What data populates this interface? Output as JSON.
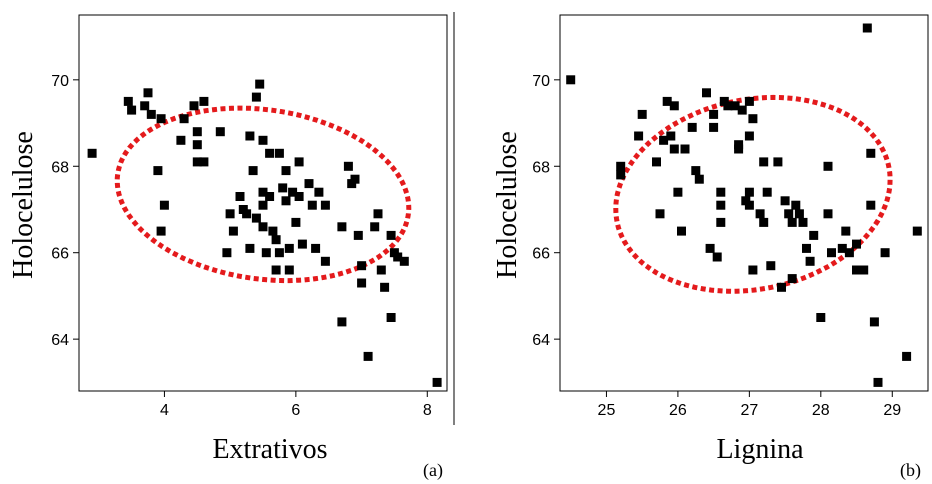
{
  "chart_data": [
    {
      "type": "scatter",
      "panel_label": "(a)",
      "xlabel": "Extrativos",
      "ylabel": "Holocelulose",
      "xlim": [
        2.7,
        8.3
      ],
      "ylim": [
        62.8,
        71.5
      ],
      "xticks": [
        4,
        6,
        8
      ],
      "yticks": [
        64,
        66,
        68,
        70
      ],
      "marker_color": "#000000",
      "ellipse_color": "#e41a1c",
      "ellipse": {
        "cx": 5.5,
        "cy": 67.35,
        "rx": 2.3,
        "ry": 1.9,
        "angle_deg": -28
      },
      "points": [
        [
          2.9,
          68.3
        ],
        [
          3.45,
          69.5
        ],
        [
          3.5,
          69.3
        ],
        [
          3.7,
          69.4
        ],
        [
          3.75,
          69.7
        ],
        [
          3.8,
          69.2
        ],
        [
          3.9,
          67.9
        ],
        [
          3.95,
          69.1
        ],
        [
          4.0,
          67.1
        ],
        [
          3.95,
          66.5
        ],
        [
          4.25,
          68.6
        ],
        [
          4.3,
          69.1
        ],
        [
          4.45,
          69.4
        ],
        [
          4.5,
          68.8
        ],
        [
          4.6,
          69.5
        ],
        [
          4.5,
          68.5
        ],
        [
          4.5,
          68.1
        ],
        [
          4.6,
          68.1
        ],
        [
          4.85,
          68.8
        ],
        [
          5.0,
          66.9
        ],
        [
          4.95,
          66.0
        ],
        [
          5.05,
          66.5
        ],
        [
          5.15,
          67.3
        ],
        [
          5.2,
          67.0
        ],
        [
          5.25,
          66.9
        ],
        [
          5.3,
          66.1
        ],
        [
          5.3,
          68.7
        ],
        [
          5.35,
          67.9
        ],
        [
          5.4,
          66.8
        ],
        [
          5.4,
          69.6
        ],
        [
          5.45,
          69.9
        ],
        [
          5.5,
          68.6
        ],
        [
          5.5,
          67.4
        ],
        [
          5.5,
          67.1
        ],
        [
          5.5,
          66.6
        ],
        [
          5.55,
          66.0
        ],
        [
          5.6,
          68.3
        ],
        [
          5.6,
          67.3
        ],
        [
          5.65,
          66.5
        ],
        [
          5.7,
          66.3
        ],
        [
          5.7,
          65.6
        ],
        [
          5.75,
          68.3
        ],
        [
          5.75,
          66.0
        ],
        [
          5.8,
          67.5
        ],
        [
          5.85,
          67.9
        ],
        [
          5.85,
          67.2
        ],
        [
          5.9,
          66.1
        ],
        [
          5.9,
          65.6
        ],
        [
          5.95,
          67.4
        ],
        [
          6.0,
          66.7
        ],
        [
          6.05,
          68.1
        ],
        [
          6.05,
          67.3
        ],
        [
          6.1,
          66.2
        ],
        [
          6.2,
          67.6
        ],
        [
          6.25,
          67.1
        ],
        [
          6.3,
          66.1
        ],
        [
          6.35,
          67.4
        ],
        [
          6.45,
          65.8
        ],
        [
          6.45,
          67.1
        ],
        [
          6.7,
          66.6
        ],
        [
          6.7,
          64.4
        ],
        [
          6.8,
          68.0
        ],
        [
          6.85,
          67.6
        ],
        [
          6.9,
          67.7
        ],
        [
          6.95,
          66.4
        ],
        [
          7.0,
          65.7
        ],
        [
          7.0,
          65.3
        ],
        [
          7.1,
          63.6
        ],
        [
          7.2,
          66.6
        ],
        [
          7.25,
          66.9
        ],
        [
          7.3,
          65.6
        ],
        [
          7.35,
          65.2
        ],
        [
          7.45,
          66.4
        ],
        [
          7.45,
          64.5
        ],
        [
          7.5,
          66.0
        ],
        [
          7.55,
          65.9
        ],
        [
          7.65,
          65.8
        ],
        [
          8.15,
          63.0
        ]
      ]
    },
    {
      "type": "scatter",
      "panel_label": "(b)",
      "xlabel": "Lignina",
      "ylabel": "Holocelulose",
      "xlim": [
        24.35,
        29.5
      ],
      "ylim": [
        62.8,
        71.5
      ],
      "xticks": [
        25,
        26,
        27,
        28,
        29
      ],
      "yticks": [
        64,
        66,
        68,
        70
      ],
      "marker_color": "#000000",
      "ellipse_color": "#e41a1c",
      "ellipse": {
        "cx": 27.05,
        "cy": 67.35,
        "rx": 1.85,
        "ry": 2.3,
        "angle_deg": -22
      },
      "points": [
        [
          24.5,
          70.0
        ],
        [
          25.2,
          68.0
        ],
        [
          25.2,
          67.8
        ],
        [
          25.45,
          68.7
        ],
        [
          25.5,
          69.2
        ],
        [
          25.7,
          68.1
        ],
        [
          25.75,
          66.9
        ],
        [
          25.8,
          68.6
        ],
        [
          25.85,
          69.5
        ],
        [
          25.9,
          68.7
        ],
        [
          25.95,
          69.4
        ],
        [
          25.95,
          68.4
        ],
        [
          26.0,
          67.4
        ],
        [
          26.05,
          66.5
        ],
        [
          26.1,
          68.4
        ],
        [
          26.2,
          68.9
        ],
        [
          26.25,
          67.9
        ],
        [
          26.3,
          67.7
        ],
        [
          26.4,
          69.7
        ],
        [
          26.45,
          66.1
        ],
        [
          26.5,
          69.2
        ],
        [
          26.55,
          65.9
        ],
        [
          26.5,
          68.9
        ],
        [
          26.6,
          67.4
        ],
        [
          26.6,
          67.1
        ],
        [
          26.6,
          66.7
        ],
        [
          26.65,
          69.5
        ],
        [
          26.7,
          69.4
        ],
        [
          26.8,
          69.4
        ],
        [
          26.85,
          68.5
        ],
        [
          26.85,
          68.4
        ],
        [
          26.9,
          69.3
        ],
        [
          26.95,
          67.2
        ],
        [
          27.0,
          69.5
        ],
        [
          27.0,
          68.7
        ],
        [
          27.0,
          67.4
        ],
        [
          27.0,
          67.1
        ],
        [
          27.05,
          69.1
        ],
        [
          27.05,
          65.6
        ],
        [
          27.15,
          66.9
        ],
        [
          27.2,
          66.7
        ],
        [
          27.2,
          68.1
        ],
        [
          27.25,
          67.4
        ],
        [
          27.3,
          65.7
        ],
        [
          27.4,
          68.1
        ],
        [
          27.45,
          65.2
        ],
        [
          27.5,
          67.2
        ],
        [
          27.55,
          66.9
        ],
        [
          27.6,
          65.4
        ],
        [
          27.6,
          66.7
        ],
        [
          27.65,
          67.1
        ],
        [
          27.7,
          66.9
        ],
        [
          27.75,
          66.7
        ],
        [
          27.8,
          66.1
        ],
        [
          27.85,
          65.8
        ],
        [
          27.9,
          66.4
        ],
        [
          28.0,
          64.5
        ],
        [
          28.1,
          68.0
        ],
        [
          28.1,
          66.9
        ],
        [
          28.15,
          66.0
        ],
        [
          28.3,
          66.1
        ],
        [
          28.35,
          66.5
        ],
        [
          28.4,
          66.0
        ],
        [
          28.5,
          66.2
        ],
        [
          28.5,
          65.6
        ],
        [
          28.6,
          65.6
        ],
        [
          28.65,
          71.2
        ],
        [
          28.7,
          68.3
        ],
        [
          28.7,
          67.1
        ],
        [
          28.75,
          64.4
        ],
        [
          28.8,
          63.0
        ],
        [
          28.9,
          66.0
        ],
        [
          29.2,
          63.6
        ],
        [
          29.35,
          66.5
        ]
      ]
    }
  ]
}
